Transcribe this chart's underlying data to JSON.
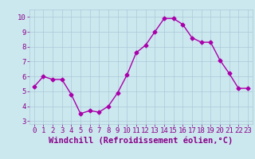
{
  "x": [
    0,
    1,
    2,
    3,
    4,
    5,
    6,
    7,
    8,
    9,
    10,
    11,
    12,
    13,
    14,
    15,
    16,
    17,
    18,
    19,
    20,
    21,
    22,
    23
  ],
  "y": [
    5.3,
    6.0,
    5.8,
    5.8,
    4.8,
    3.5,
    3.7,
    3.6,
    4.0,
    4.9,
    6.1,
    7.6,
    8.1,
    9.0,
    9.9,
    9.9,
    9.5,
    8.6,
    8.3,
    8.3,
    7.1,
    6.2,
    5.2,
    5.2
  ],
  "line_color": "#aa00aa",
  "marker": "D",
  "marker_size": 2.5,
  "bg_color": "#cce8ef",
  "grid_color": "#aac8d8",
  "xlabel": "Windchill (Refroidissement éolien,°C)",
  "xlim": [
    -0.5,
    23.5
  ],
  "ylim": [
    2.8,
    10.5
  ],
  "yticks": [
    3,
    4,
    5,
    6,
    7,
    8,
    9,
    10
  ],
  "xticks": [
    0,
    1,
    2,
    3,
    4,
    5,
    6,
    7,
    8,
    9,
    10,
    11,
    12,
    13,
    14,
    15,
    16,
    17,
    18,
    19,
    20,
    21,
    22,
    23
  ],
  "label_color": "#880088",
  "tick_fontsize": 6.5,
  "xlabel_fontsize": 7.5
}
